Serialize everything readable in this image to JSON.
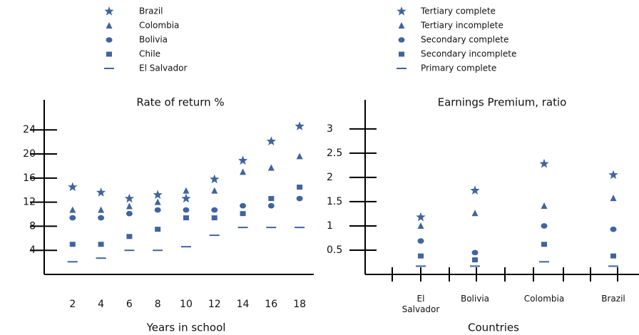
{
  "chart_data": [
    {
      "type": "scatter",
      "title": "Rate of return %",
      "x_label": "Years in school",
      "x": [
        2,
        4,
        6,
        8,
        10,
        12,
        14,
        16,
        18
      ],
      "xlim": [
        0,
        19
      ],
      "xticks": [
        2,
        4,
        6,
        8,
        10,
        12,
        14,
        16,
        18
      ],
      "ylim": [
        0,
        29
      ],
      "yticks": [
        4,
        8,
        12,
        16,
        20,
        24
      ],
      "legend": "top",
      "series": [
        {
          "name": "Brazil",
          "color": "#3f64a0",
          "marker": "star",
          "values": [
            14.5,
            13.6,
            12.6,
            13.2,
            12.6,
            15.8,
            18.9,
            22.1,
            24.6
          ]
        },
        {
          "name": "Colombia",
          "color": "#3f64a0",
          "marker": "triangle",
          "values": [
            10.7,
            10.7,
            11.3,
            12,
            13.9,
            13.9,
            17,
            17.7,
            19.6
          ]
        },
        {
          "name": "Bolivia",
          "color": "#3f64a0",
          "marker": "circle",
          "values": [
            9.4,
            9.4,
            10.1,
            10.7,
            10.7,
            10.7,
            11.4,
            11.4,
            12.6
          ]
        },
        {
          "name": "Chile",
          "color": "#3f64a0",
          "marker": "square",
          "values": [
            5,
            5,
            6.3,
            7.5,
            9.4,
            9.4,
            10.1,
            12.6,
            14.5
          ]
        },
        {
          "name": "El Salvador",
          "color": "#3f64a0",
          "marker": "dash",
          "values": [
            2.1,
            2.7,
            4,
            4,
            4.6,
            6.5,
            7.8,
            7.8,
            7.8
          ]
        }
      ]
    },
    {
      "type": "scatter",
      "title": "Earnings Premium, ratio",
      "x_label": "Countries",
      "categories": [
        "El Salvador",
        "Bolivia",
        "Colombia",
        "Brazil"
      ],
      "ylim": [
        0,
        3.6
      ],
      "yticks": [
        0.5,
        1,
        1.5,
        2,
        2.5,
        3
      ],
      "legend": "top",
      "series": [
        {
          "name": "Tertiary complete",
          "color": "#3f64a0",
          "marker": "star",
          "values": [
            1.18,
            1.73,
            2.28,
            2.05
          ]
        },
        {
          "name": "Tertiary incomplete",
          "color": "#3f64a0",
          "marker": "triangle",
          "values": [
            1.0,
            1.26,
            1.41,
            1.57
          ]
        },
        {
          "name": "Secondary complete",
          "color": "#3f64a0",
          "marker": "circle",
          "values": [
            0.69,
            0.45,
            1.0,
            0.93
          ]
        },
        {
          "name": "Secondary incomplete",
          "color": "#3f64a0",
          "marker": "square",
          "values": [
            0.38,
            0.3,
            0.62,
            0.38
          ]
        },
        {
          "name": "Primary complete",
          "color": "#3f64a0",
          "marker": "dash",
          "values": [
            0.17,
            0.17,
            0.26,
            0.17
          ]
        }
      ]
    }
  ]
}
